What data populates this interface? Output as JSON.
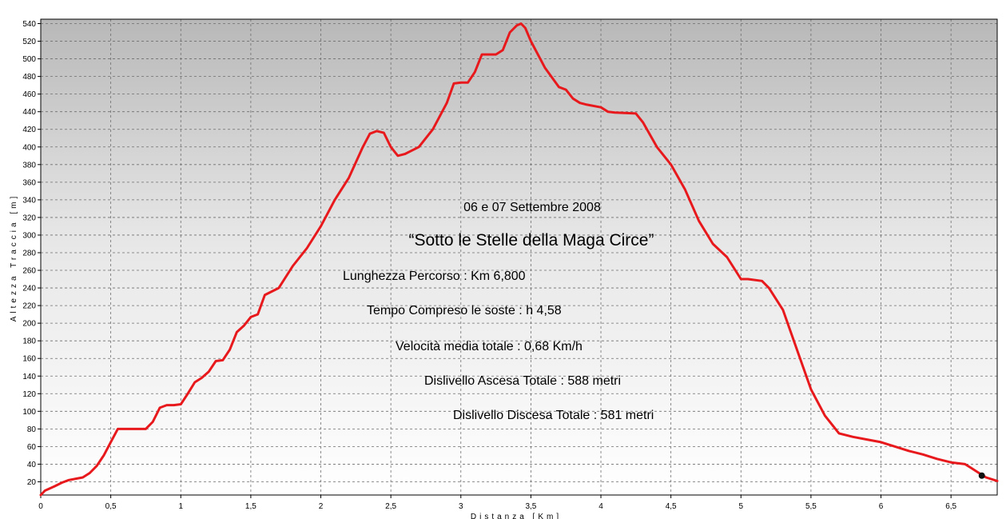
{
  "chart_data": {
    "type": "line",
    "title": "",
    "xlabel": "Distanza [Km]",
    "ylabel": "Altezza Traccia [m]",
    "xlim": [
      0,
      6.83
    ],
    "ylim": [
      5,
      545
    ],
    "grid": true,
    "x_ticks": [
      0,
      0.5,
      1,
      1.5,
      2,
      2.5,
      3,
      3.5,
      4,
      4.5,
      5,
      5.5,
      6,
      6.5
    ],
    "x_tick_labels": [
      "0",
      "0,5",
      "1",
      "1,5",
      "2",
      "2,5",
      "3",
      "3,5",
      "4",
      "4,5",
      "5",
      "5,5",
      "6",
      "6,5"
    ],
    "y_ticks": [
      20,
      40,
      60,
      80,
      100,
      120,
      140,
      160,
      180,
      200,
      220,
      240,
      260,
      280,
      300,
      320,
      340,
      360,
      380,
      400,
      420,
      440,
      460,
      480,
      500,
      520,
      540
    ],
    "y_tick_labels": [
      "20",
      "40",
      "60",
      "80",
      "100",
      "120",
      "140",
      "160",
      "180",
      "200",
      "220",
      "240",
      "260",
      "280",
      "300",
      "320",
      "340",
      "360",
      "380",
      "400",
      "420",
      "440",
      "460",
      "480",
      "500",
      "520",
      "540"
    ],
    "series": [
      {
        "color": "#e8191c",
        "x": [
          0,
          0.03,
          0.1,
          0.15,
          0.2,
          0.3,
          0.35,
          0.4,
          0.45,
          0.5,
          0.55,
          0.6,
          0.65,
          0.75,
          0.8,
          0.85,
          0.9,
          0.95,
          1.0,
          1.05,
          1.1,
          1.15,
          1.2,
          1.25,
          1.3,
          1.35,
          1.4,
          1.45,
          1.5,
          1.55,
          1.6,
          1.7,
          1.8,
          1.9,
          2.0,
          2.1,
          2.2,
          2.3,
          2.35,
          2.4,
          2.45,
          2.5,
          2.55,
          2.6,
          2.7,
          2.8,
          2.9,
          2.95,
          3.0,
          3.05,
          3.1,
          3.15,
          3.2,
          3.25,
          3.3,
          3.35,
          3.4,
          3.43,
          3.46,
          3.5,
          3.6,
          3.7,
          3.75,
          3.8,
          3.85,
          3.9,
          4.0,
          4.05,
          4.1,
          4.25,
          4.3,
          4.4,
          4.5,
          4.6,
          4.7,
          4.8,
          4.9,
          5.0,
          5.05,
          5.15,
          5.2,
          5.3,
          5.4,
          5.5,
          5.6,
          5.7,
          5.8,
          5.9,
          6.0,
          6.1,
          6.2,
          6.3,
          6.4,
          6.5,
          6.6,
          6.65,
          6.7,
          6.75,
          6.83
        ],
        "y": [
          5,
          10,
          15,
          19,
          22,
          25,
          30,
          38,
          50,
          65,
          80,
          80,
          80,
          80,
          88,
          104,
          107,
          107,
          108,
          120,
          133,
          138,
          145,
          157,
          158,
          170,
          190,
          197,
          207,
          210,
          232,
          240,
          265,
          285,
          310,
          340,
          365,
          400,
          415,
          418,
          416,
          400,
          390,
          392,
          400,
          420,
          450,
          472,
          473,
          473,
          485,
          505,
          505,
          505,
          510,
          530,
          538,
          540,
          535,
          520,
          490,
          468,
          465,
          455,
          450,
          448,
          445,
          440,
          439,
          438,
          428,
          400,
          380,
          352,
          316,
          290,
          275,
          250,
          250,
          248,
          240,
          215,
          170,
          125,
          95,
          75,
          71,
          68,
          65,
          60,
          55,
          51,
          46,
          42,
          40,
          35,
          30,
          25,
          21
        ]
      }
    ],
    "marker_point": {
      "x": 6.72,
      "y": 27
    },
    "annotations": [
      "06 e 07 Settembre 2008",
      "“Sotto le Stelle della Maga Circe”",
      "Lunghezza Percorso : Km 6,800",
      "Tempo Compreso le soste : h 4,58",
      "Velocità media totale : 0,68 Km/h",
      "Dislivello Ascesa Totale : 588 metri",
      "Dislivello Discesa Totale : 581 metri"
    ]
  }
}
